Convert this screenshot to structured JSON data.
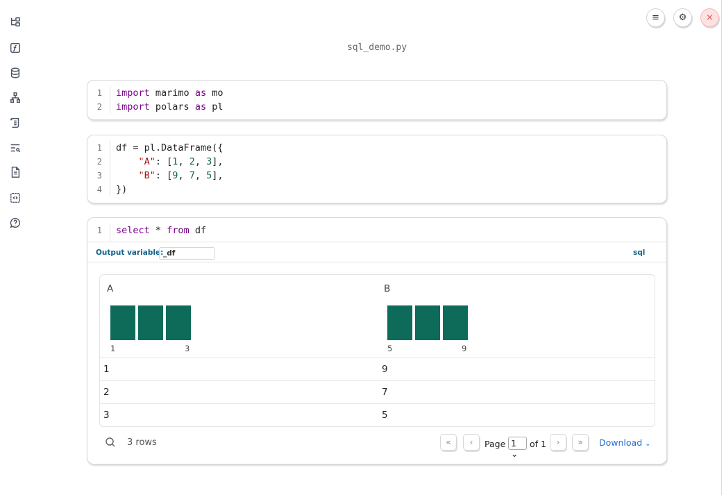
{
  "sidebar": {
    "icons": [
      "file-tree-icon",
      "function-icon",
      "database-icon",
      "dependency-graph-icon",
      "scroll-icon",
      "search-list-icon",
      "document-icon",
      "snippets-icon",
      "help-icon"
    ]
  },
  "topbar": {
    "menu": "≡",
    "settings": "⚙",
    "close": "×"
  },
  "filename": "sql_demo.py",
  "cells": [
    {
      "lines": [
        "import marimo as mo",
        "import polars as pl"
      ]
    },
    {
      "lines": [
        "df = pl.DataFrame({",
        "    \"A\": [1, 2, 3],",
        "    \"B\": [9, 7, 5],",
        "})"
      ]
    },
    {
      "lines": [
        "select * from df"
      ],
      "output_variable_label": "Output variable:",
      "output_variable": "_df",
      "language": "sql"
    }
  ],
  "table": {
    "columns": [
      {
        "name": "A",
        "min": "1",
        "max": "3"
      },
      {
        "name": "B",
        "min": "5",
        "max": "9"
      }
    ],
    "rows": [
      [
        "1",
        "9"
      ],
      [
        "2",
        "7"
      ],
      [
        "3",
        "5"
      ]
    ],
    "row_count": "3 rows",
    "page_label": "Page",
    "page": "1",
    "of_label": "of 1",
    "download": "Download",
    "bar_color": "#0e6b5a"
  }
}
